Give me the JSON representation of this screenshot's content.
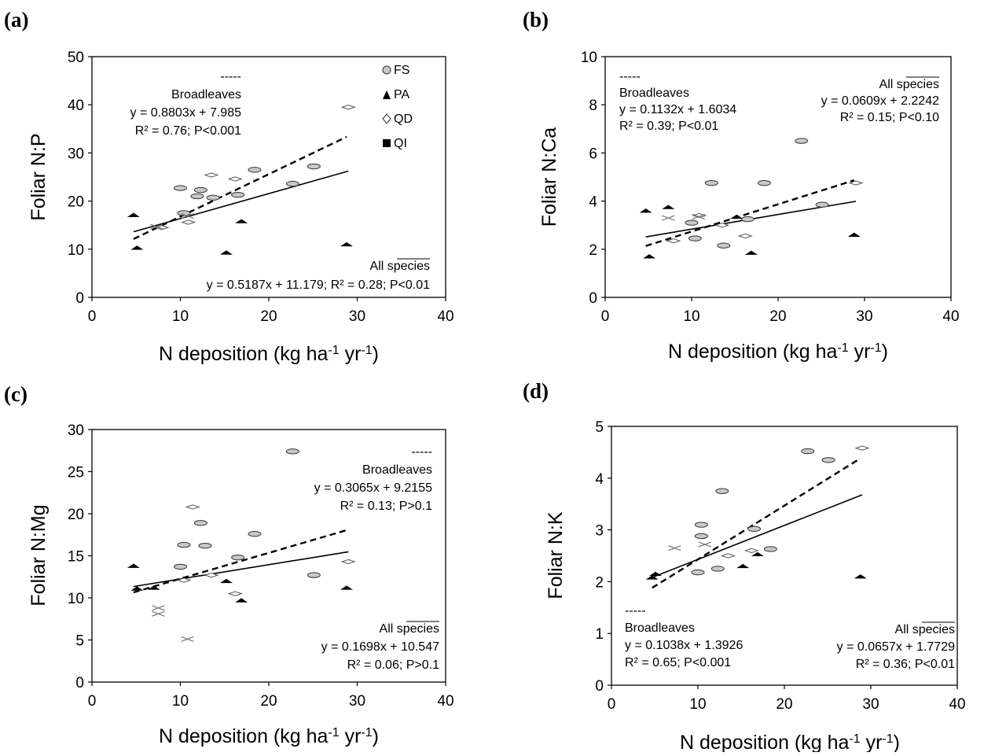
{
  "figure": {
    "legend": [
      {
        "label": "FS",
        "marker": "oval-gray"
      },
      {
        "label": "PA",
        "marker": "triangle-black"
      },
      {
        "label": "QD",
        "marker": "diamond-white"
      },
      {
        "label": "QI",
        "marker": "square-black"
      }
    ],
    "colors": {
      "FS": "#c8c8c8",
      "PA": "#000000",
      "QD": "#ffffff",
      "QI": "#999999",
      "all_species_line": "#000000",
      "broadleaves_line": "#000000"
    }
  },
  "chart_data": [
    {
      "panel": "(a)",
      "type": "scatter",
      "ylabel": "Foliar N:P",
      "xlabel": "N deposition (kg ha-1 yr-1)",
      "xlim": [
        0,
        40
      ],
      "ylim": [
        0,
        50
      ],
      "xticks": [
        "0",
        "10",
        "20",
        "30",
        "40"
      ],
      "yticks": [
        "0",
        "10",
        "20",
        "30",
        "40",
        "50"
      ],
      "series": [
        {
          "name": "FS",
          "points": [
            [
              10.0,
              22.7
            ],
            [
              10.4,
              17.5
            ],
            [
              11.9,
              21.0
            ],
            [
              12.3,
              22.3
            ],
            [
              13.7,
              20.7
            ],
            [
              16.5,
              21.3
            ],
            [
              18.4,
              26.5
            ],
            [
              22.7,
              23.6
            ],
            [
              25.1,
              27.2
            ]
          ]
        },
        {
          "name": "PA",
          "points": [
            [
              4.7,
              17.1
            ],
            [
              5.1,
              10.3
            ],
            [
              15.2,
              9.3
            ],
            [
              16.9,
              15.8
            ],
            [
              28.8,
              11.0
            ]
          ]
        },
        {
          "name": "QD",
          "points": [
            [
              7.9,
              14.5
            ],
            [
              10.9,
              15.6
            ],
            [
              13.5,
              25.4
            ],
            [
              16.2,
              24.6
            ],
            [
              29.0,
              39.5
            ]
          ]
        },
        {
          "name": "QI",
          "points": [
            [
              7.3,
              14.7
            ],
            [
              10.8,
              16.9
            ]
          ]
        }
      ],
      "lines": [
        {
          "name": "All species",
          "style": "solid",
          "slope": 0.5187,
          "intercept": 11.179,
          "x_range": [
            4.7,
            29.0
          ]
        },
        {
          "name": "Broadleaves",
          "style": "dashed",
          "slope": 0.8803,
          "intercept": 7.985,
          "x_range": [
            4.7,
            28.8
          ]
        }
      ],
      "annotations": {
        "broadleaves": [
          "-----",
          "Broadleaves",
          "y = 0.8803x + 7.985",
          "R² = 0.76; P<0.001"
        ],
        "all_species": [
          "All species",
          "y = 0.5187x + 11.179; R² = 0.28; P<0.01"
        ]
      }
    },
    {
      "panel": "(b)",
      "type": "scatter",
      "ylabel": "Foliar N:Ca",
      "xlabel": "N deposition (kg ha-1 yr-1)",
      "xlim": [
        0,
        40
      ],
      "ylim": [
        0,
        10
      ],
      "xticks": [
        "0",
        "10",
        "20",
        "30",
        "40"
      ],
      "yticks": [
        "0",
        "2",
        "4",
        "6",
        "8",
        "10"
      ],
      "series": [
        {
          "name": "FS",
          "points": [
            [
              10.0,
              3.1
            ],
            [
              10.4,
              2.45
            ],
            [
              12.3,
              4.75
            ],
            [
              13.7,
              2.15
            ],
            [
              16.5,
              3.25
            ],
            [
              18.4,
              4.75
            ],
            [
              22.7,
              6.5
            ],
            [
              25.1,
              3.85
            ]
          ]
        },
        {
          "name": "PA",
          "points": [
            [
              4.7,
              3.6
            ],
            [
              5.1,
              1.7
            ],
            [
              7.3,
              3.75
            ],
            [
              15.2,
              3.35
            ],
            [
              16.9,
              1.85
            ],
            [
              28.8,
              2.6
            ]
          ]
        },
        {
          "name": "QD",
          "points": [
            [
              7.9,
              2.35
            ],
            [
              10.9,
              3.4
            ],
            [
              13.5,
              3.0
            ],
            [
              16.2,
              2.55
            ],
            [
              29.0,
              4.75
            ]
          ]
        },
        {
          "name": "QI",
          "points": [
            [
              7.3,
              3.3
            ],
            [
              10.8,
              3.35
            ]
          ]
        }
      ],
      "lines": [
        {
          "name": "All species",
          "style": "solid",
          "slope": 0.0609,
          "intercept": 2.2242,
          "x_range": [
            4.7,
            29.0
          ]
        },
        {
          "name": "Broadleaves",
          "style": "dashed",
          "slope": 0.1132,
          "intercept": 1.6034,
          "x_range": [
            4.7,
            28.8
          ]
        }
      ],
      "annotations": {
        "broadleaves": [
          "-----",
          "Broadleaves",
          "y = 0.1132x + 1.6034",
          "R² = 0.39; P<0.01"
        ],
        "all_species": [
          "All species",
          "y = 0.0609x + 2.2242",
          "R² = 0.15; P<0.10"
        ]
      }
    },
    {
      "panel": "(c)",
      "type": "scatter",
      "ylabel": "Foliar N:Mg",
      "xlabel": "N deposition (kg ha-1 yr-1)",
      "xlim": [
        0,
        40
      ],
      "ylim": [
        0,
        30
      ],
      "xticks": [
        "0",
        "10",
        "20",
        "30",
        "40"
      ],
      "yticks": [
        "0",
        "5",
        "10",
        "15",
        "20",
        "25",
        "30"
      ],
      "series": [
        {
          "name": "FS",
          "points": [
            [
              10.0,
              13.7
            ],
            [
              10.4,
              16.3
            ],
            [
              12.3,
              18.9
            ],
            [
              12.8,
              16.2
            ],
            [
              16.5,
              14.8
            ],
            [
              18.4,
              17.6
            ],
            [
              22.7,
              27.4
            ],
            [
              25.1,
              12.7
            ]
          ]
        },
        {
          "name": "PA",
          "points": [
            [
              4.7,
              13.8
            ],
            [
              5.1,
              11.1
            ],
            [
              7.0,
              11.2
            ],
            [
              15.2,
              12.0
            ],
            [
              16.9,
              9.7
            ],
            [
              28.8,
              11.2
            ]
          ]
        },
        {
          "name": "QD",
          "points": [
            [
              10.4,
              12.1
            ],
            [
              11.4,
              20.8
            ],
            [
              13.5,
              12.7
            ],
            [
              16.2,
              10.5
            ],
            [
              29.0,
              14.3
            ]
          ]
        },
        {
          "name": "QI",
          "points": [
            [
              7.5,
              8.8
            ],
            [
              7.5,
              8.1
            ],
            [
              10.8,
              5.1
            ]
          ]
        }
      ],
      "lines": [
        {
          "name": "All species",
          "style": "solid",
          "slope": 0.1698,
          "intercept": 10.547,
          "x_range": [
            4.7,
            29.0
          ]
        },
        {
          "name": "Broadleaves",
          "style": "dashed",
          "slope": 0.3065,
          "intercept": 9.2155,
          "x_range": [
            4.7,
            28.8
          ]
        }
      ],
      "annotations": {
        "broadleaves": [
          "-----",
          "Broadleaves",
          "y = 0.3065x + 9.2155",
          "R² = 0.13; P>0.1"
        ],
        "all_species": [
          "All species",
          "y = 0.1698x + 10.547",
          "R² = 0.06; P>0.1"
        ]
      }
    },
    {
      "panel": "(d)",
      "type": "scatter",
      "ylabel": "Foliar N:K",
      "xlabel": "N deposition (kg ha-1 yr-1)",
      "xlim": [
        0,
        40
      ],
      "ylim": [
        0,
        5
      ],
      "xticks": [
        "0",
        "10",
        "20",
        "30",
        "40"
      ],
      "yticks": [
        "0",
        "1",
        "2",
        "3",
        "4",
        "5"
      ],
      "series": [
        {
          "name": "FS",
          "points": [
            [
              10.0,
              2.18
            ],
            [
              10.4,
              3.1
            ],
            [
              10.4,
              2.88
            ],
            [
              12.3,
              2.25
            ],
            [
              12.8,
              3.75
            ],
            [
              16.5,
              3.02
            ],
            [
              18.4,
              2.63
            ],
            [
              22.7,
              4.52
            ],
            [
              25.1,
              4.35
            ]
          ]
        },
        {
          "name": "PA",
          "points": [
            [
              4.7,
              2.08
            ],
            [
              5.1,
              2.15
            ],
            [
              15.2,
              2.3
            ],
            [
              16.9,
              2.53
            ],
            [
              28.8,
              2.1
            ]
          ]
        },
        {
          "name": "QD",
          "points": [
            [
              13.5,
              2.5
            ],
            [
              16.2,
              2.6
            ],
            [
              29.0,
              4.58
            ]
          ]
        },
        {
          "name": "QI",
          "points": [
            [
              7.3,
              2.65
            ],
            [
              10.8,
              2.72
            ]
          ]
        }
      ],
      "lines": [
        {
          "name": "All species",
          "style": "solid",
          "slope": 0.0657,
          "intercept": 1.7729,
          "x_range": [
            4.7,
            29.0
          ]
        },
        {
          "name": "Broadleaves",
          "style": "dashed",
          "slope": 0.1038,
          "intercept": 1.3926,
          "x_range": [
            4.7,
            28.8
          ]
        }
      ],
      "annotations": {
        "broadleaves": [
          "-----",
          "Broadleaves",
          "y = 0.1038x + 1.3926",
          "R² = 0.65; P<0.001"
        ],
        "all_species": [
          "All species",
          "y = 0.0657x + 1.7729",
          "R² = 0.36; P<0.01"
        ]
      }
    }
  ]
}
